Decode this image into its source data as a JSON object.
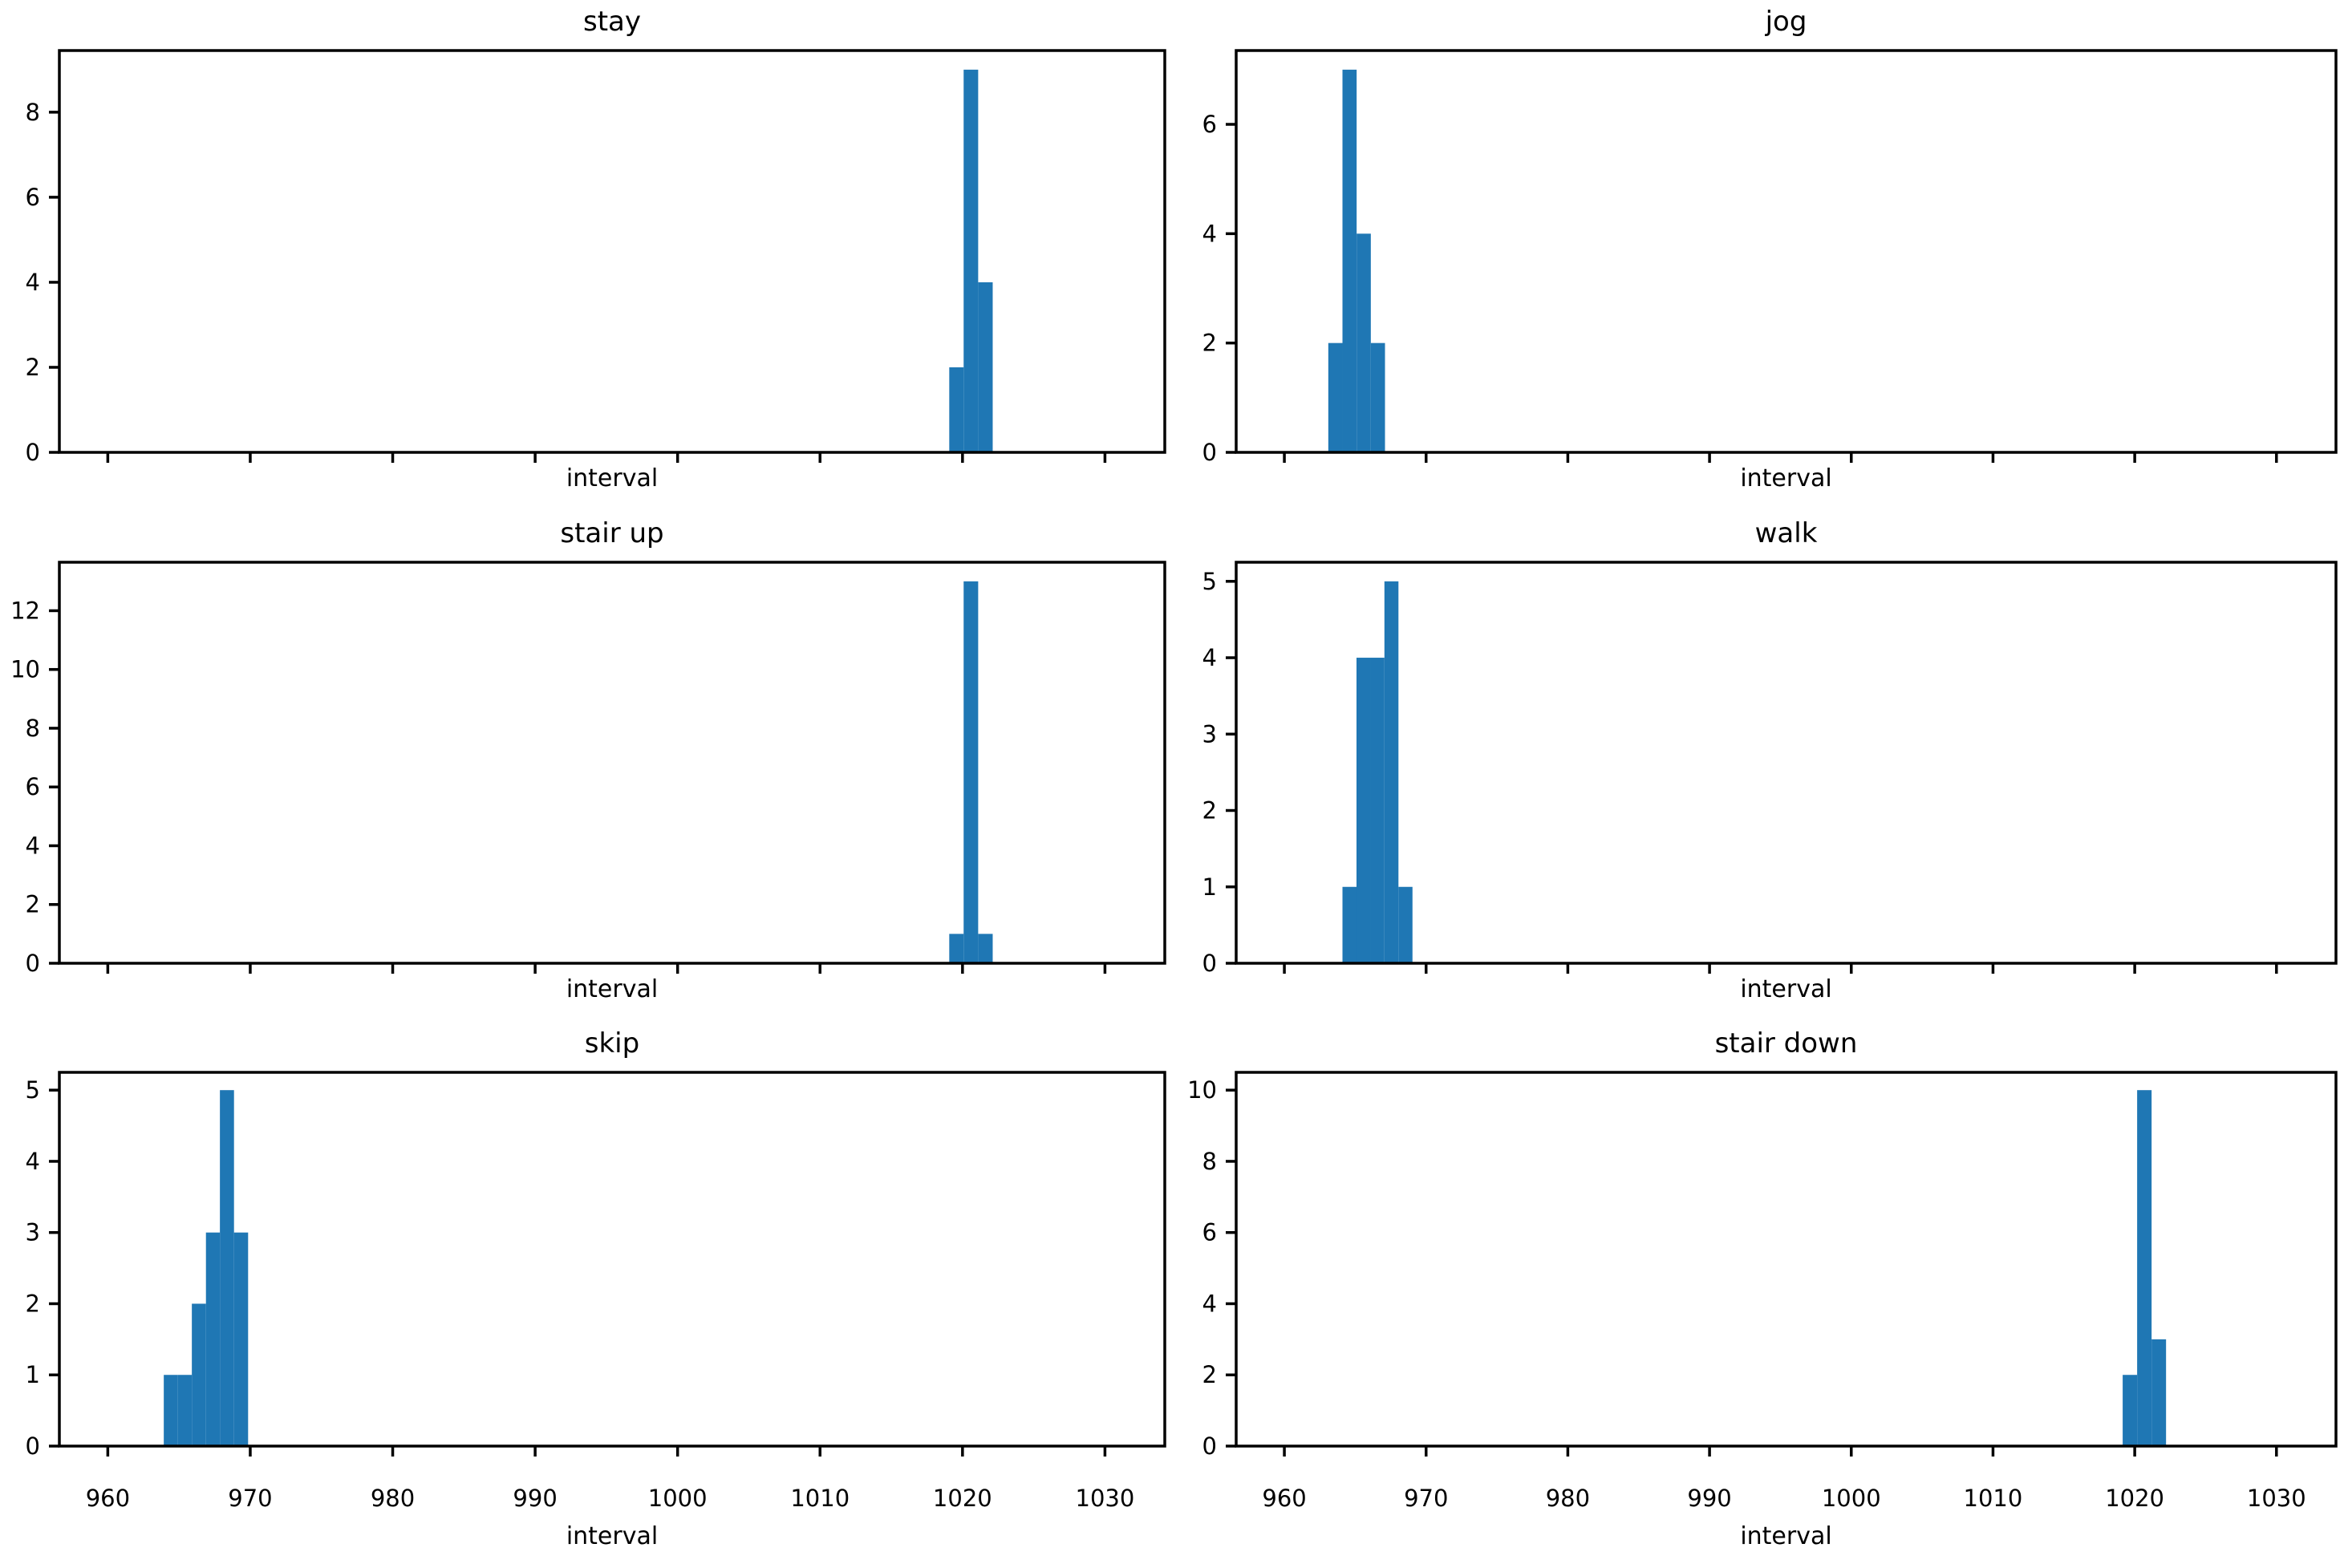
{
  "figure": {
    "background": "#ffffff",
    "bar_color": "#1f77b4",
    "axis_color": "#000000",
    "font_color": "#000000"
  },
  "x_axis": {
    "label": "interval",
    "ticks": [
      960,
      970,
      980,
      990,
      1000,
      1010,
      1020,
      1030
    ],
    "xlim": [
      956.6,
      1034.2
    ]
  },
  "chart_data": [
    {
      "type": "bar",
      "subtype": "histogram",
      "title": "stay",
      "xlabel": "interval",
      "bin_edges": [
        1019.07,
        1020.08,
        1021.1,
        1022.12
      ],
      "counts": [
        2,
        9,
        4
      ],
      "yticks": [
        0,
        2,
        4,
        6,
        8
      ],
      "ylim": [
        0,
        9.45
      ],
      "xticks": [
        960,
        970,
        980,
        990,
        1000,
        1010,
        1020,
        1030
      ],
      "xlim": [
        956.6,
        1034.2
      ],
      "show_xtick_labels": false,
      "grid": false,
      "legend": null
    },
    {
      "type": "bar",
      "subtype": "histogram",
      "title": "jog",
      "xlabel": "interval",
      "bin_edges": [
        963.1,
        964.1,
        965.1,
        966.1,
        967.1
      ],
      "counts": [
        2,
        7,
        4,
        2
      ],
      "yticks": [
        0,
        2,
        4,
        6
      ],
      "ylim": [
        0,
        7.35
      ],
      "xticks": [
        960,
        970,
        980,
        990,
        1000,
        1010,
        1020,
        1030
      ],
      "xlim": [
        956.6,
        1034.2
      ],
      "show_xtick_labels": false,
      "grid": false,
      "legend": null
    },
    {
      "type": "bar",
      "subtype": "histogram",
      "title": "stair up",
      "xlabel": "interval",
      "bin_edges": [
        1019.07,
        1020.08,
        1021.1,
        1022.12
      ],
      "counts": [
        1,
        13,
        1
      ],
      "yticks": [
        0,
        2,
        4,
        6,
        8,
        10,
        12
      ],
      "ylim": [
        0,
        13.65
      ],
      "xticks": [
        960,
        970,
        980,
        990,
        1000,
        1010,
        1020,
        1030
      ],
      "xlim": [
        956.6,
        1034.2
      ],
      "show_xtick_labels": false,
      "grid": false,
      "legend": null
    },
    {
      "type": "bar",
      "subtype": "histogram",
      "title": "walk",
      "xlabel": "interval",
      "bin_edges": [
        964.1,
        965.09,
        966.08,
        967.06,
        968.05,
        969.04
      ],
      "counts": [
        1,
        4,
        4,
        5,
        1
      ],
      "yticks": [
        0,
        1,
        2,
        3,
        4,
        5
      ],
      "ylim": [
        0,
        5.25
      ],
      "xticks": [
        960,
        970,
        980,
        990,
        1000,
        1010,
        1020,
        1030
      ],
      "xlim": [
        956.6,
        1034.2
      ],
      "show_xtick_labels": false,
      "grid": false,
      "legend": null
    },
    {
      "type": "bar",
      "subtype": "histogram",
      "title": "skip",
      "xlabel": "interval",
      "bin_edges": [
        963.93,
        964.92,
        965.9,
        966.89,
        967.87,
        968.86,
        969.85
      ],
      "counts": [
        1,
        1,
        2,
        3,
        5,
        3
      ],
      "yticks": [
        0,
        1,
        2,
        3,
        4,
        5
      ],
      "ylim": [
        0,
        5.25
      ],
      "xticks": [
        960,
        970,
        980,
        990,
        1000,
        1010,
        1020,
        1030
      ],
      "xlim": [
        956.6,
        1034.2
      ],
      "show_xtick_labels": true,
      "grid": false,
      "legend": null
    },
    {
      "type": "bar",
      "subtype": "histogram",
      "title": "stair down",
      "xlabel": "interval",
      "bin_edges": [
        1019.15,
        1020.17,
        1021.19,
        1022.21
      ],
      "counts": [
        2,
        10,
        3
      ],
      "yticks": [
        0,
        2,
        4,
        6,
        8,
        10
      ],
      "ylim": [
        0,
        10.5
      ],
      "xticks": [
        960,
        970,
        980,
        990,
        1000,
        1010,
        1020,
        1030
      ],
      "xlim": [
        956.6,
        1034.2
      ],
      "show_xtick_labels": true,
      "grid": false,
      "legend": null
    }
  ]
}
